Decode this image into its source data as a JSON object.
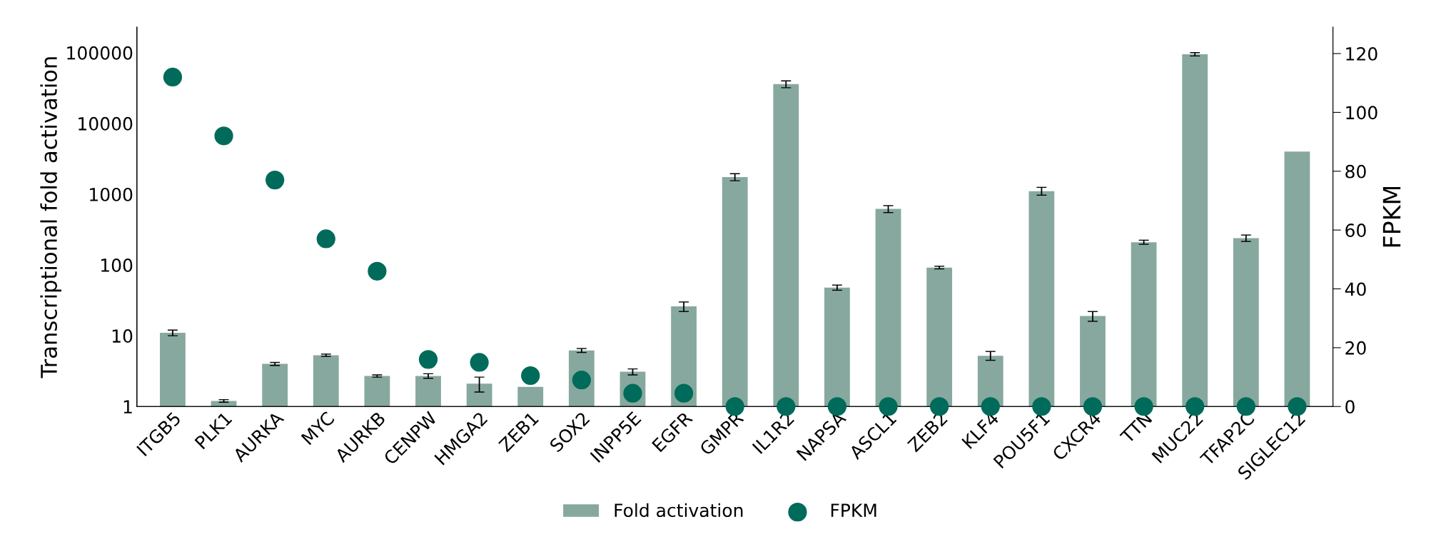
{
  "chart_data": {
    "type": "bar",
    "ylabel": "Transcriptional fold activation",
    "y2label": "FPKM",
    "categories": [
      "ITGB5",
      "PLK1",
      "AURKA",
      "MYC",
      "AURKB",
      "CENPW",
      "HMGA2",
      "ZEB1",
      "SOX2",
      "INPP5E",
      "EGFR",
      "GMPR",
      "IL1R2",
      "NAPSA",
      "ASCL1",
      "ZEB2",
      "KLF4",
      "POU5F1",
      "CXCR4",
      "TTN",
      "MUC22",
      "TFAP2C",
      "SIGLEC12"
    ],
    "series": [
      {
        "name": "Fold activation",
        "color": "#87a89e",
        "values": [
          11,
          1.2,
          4,
          5.3,
          2.7,
          2.7,
          2.1,
          1.9,
          6.2,
          3.1,
          26,
          1750,
          36000,
          48,
          620,
          92,
          5.2,
          1100,
          19,
          210,
          95000,
          240,
          4000
        ],
        "errors": [
          [
            10,
            12
          ],
          [
            1.15,
            1.25
          ],
          [
            3.8,
            4.2
          ],
          [
            5.1,
            5.5
          ],
          [
            2.6,
            2.8
          ],
          [
            2.5,
            2.9
          ],
          [
            1.6,
            2.6
          ],
          null,
          [
            5.8,
            6.6
          ],
          [
            2.8,
            3.4
          ],
          [
            22,
            30
          ],
          [
            1550,
            1950
          ],
          [
            32000,
            40000
          ],
          [
            44,
            52
          ],
          [
            550,
            690
          ],
          [
            88,
            96
          ],
          [
            4.5,
            6
          ],
          [
            970,
            1250
          ],
          [
            16,
            22
          ],
          [
            196,
            224
          ],
          [
            90000,
            100000
          ],
          [
            215,
            265
          ],
          null
        ]
      },
      {
        "name": "FPKM",
        "type": "scatter",
        "axis": "y2",
        "color": "#006b5a",
        "values": [
          112,
          92,
          77,
          57,
          46,
          16,
          15,
          10.5,
          9,
          4.5,
          4.5,
          0,
          0,
          0,
          0,
          0,
          0,
          0,
          0,
          0,
          0,
          0,
          0
        ]
      }
    ],
    "log": "y",
    "ylim": [
      1,
      230000
    ],
    "yticks": [
      1,
      10,
      100,
      1000,
      10000,
      100000
    ],
    "y2lim": [
      0,
      129
    ],
    "y2ticks": [
      0,
      20,
      40,
      60,
      80,
      100,
      120
    ],
    "marker": "circle",
    "grid": false,
    "legend": "bottom"
  }
}
